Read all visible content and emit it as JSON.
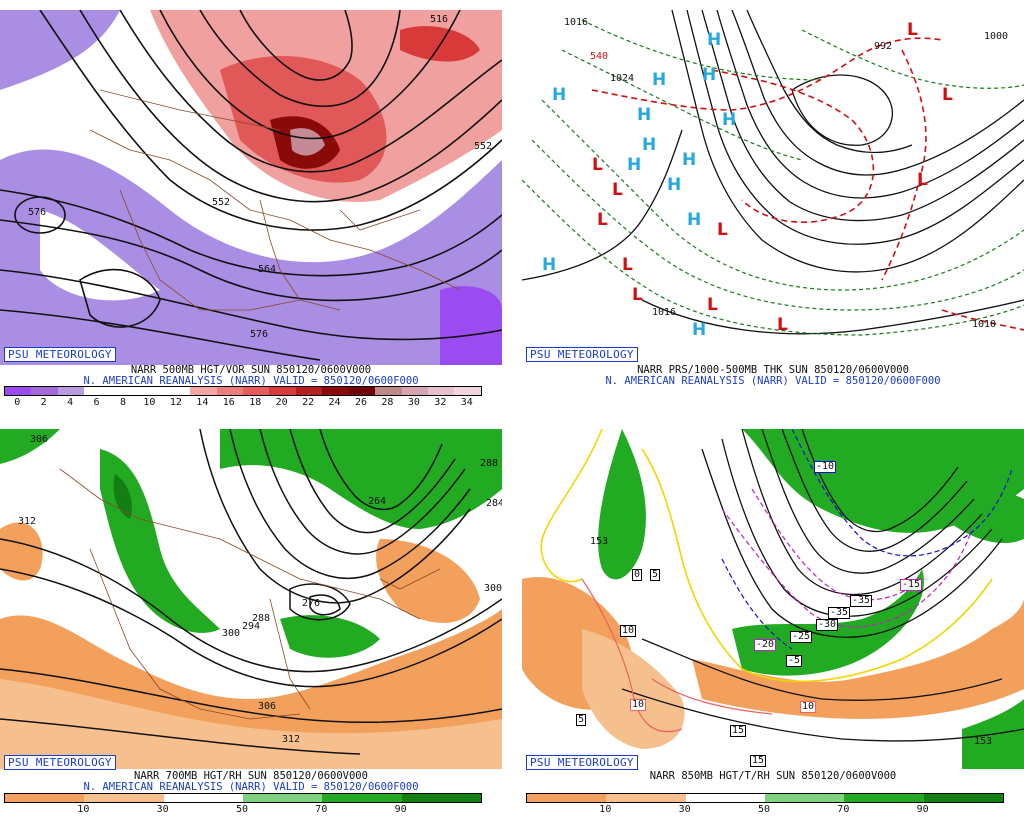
{
  "psu_label": "PSU METEOROLOGY",
  "panels": {
    "p1": {
      "line1": "NARR 500MB HGT/VOR SUN 850120/0600V000",
      "line2": "N. AMERICAN REANALYSIS (NARR) VALID = 850120/0600F000",
      "scale_ticks": [
        "0",
        "2",
        "4",
        "6",
        "8",
        "10",
        "12",
        "14",
        "16",
        "18",
        "20",
        "22",
        "24",
        "26",
        "28",
        "30",
        "32",
        "34"
      ],
      "colors": [
        "#9b4bf2",
        "#a46bd8",
        "#b99be0",
        "#ffffff",
        "#ffffff",
        "#ffffff",
        "#ffffff",
        "#f4a6a6",
        "#ef7f7f",
        "#e85c5c",
        "#d83a3a",
        "#b81c1c",
        "#8a0a0a",
        "#70000a",
        "#bf8a8a",
        "#d6a3b0",
        "#e6c0cc",
        "#f2d6dd"
      ],
      "contour_labels": [
        "576",
        "552",
        "564",
        "576",
        "516",
        "552"
      ]
    },
    "p2": {
      "line1": "NARR PRS/1000-500MB THK SUN 850120/0600V000",
      "line2": "N. AMERICAN REANALYSIS (NARR) VALID = 850120/0600F000",
      "contour_labels": [
        "1016",
        "540",
        "1024",
        "992",
        "1000",
        "1016",
        "1010"
      ],
      "high_symbol": "H",
      "low_symbol": "L"
    },
    "p3": {
      "line1": "NARR 700MB HGT/RH SUN 850120/0600V000",
      "line2": "N. AMERICAN REANALYSIS (NARR) VALID = 850120/0600F000",
      "scale_ticks": [
        "10",
        "30",
        "50",
        "70",
        "90"
      ],
      "colors": [
        "#f2a05c",
        "#f6c08e",
        "#ffffff",
        "#7fd27f",
        "#22aa22",
        "#137f13"
      ],
      "contour_labels": [
        "306",
        "312",
        "288",
        "264",
        "276",
        "288",
        "294",
        "300",
        "306",
        "312",
        "284",
        "300"
      ]
    },
    "p4": {
      "line1": "NARR 850MB HGT/T/RH SUN 850120/0600V000",
      "line2": "",
      "scale_ticks": [
        "10",
        "30",
        "50",
        "70",
        "90"
      ],
      "colors": [
        "#f2a05c",
        "#f6c08e",
        "#ffffff",
        "#7fd27f",
        "#22aa22",
        "#137f13"
      ],
      "contour_labels": [
        "153",
        "0",
        "5",
        "10",
        "10",
        "5",
        "15",
        "15",
        "-10",
        "-20",
        "-25",
        "-30",
        "-35",
        "-35",
        "-5",
        "-15",
        "10",
        "153"
      ]
    }
  }
}
